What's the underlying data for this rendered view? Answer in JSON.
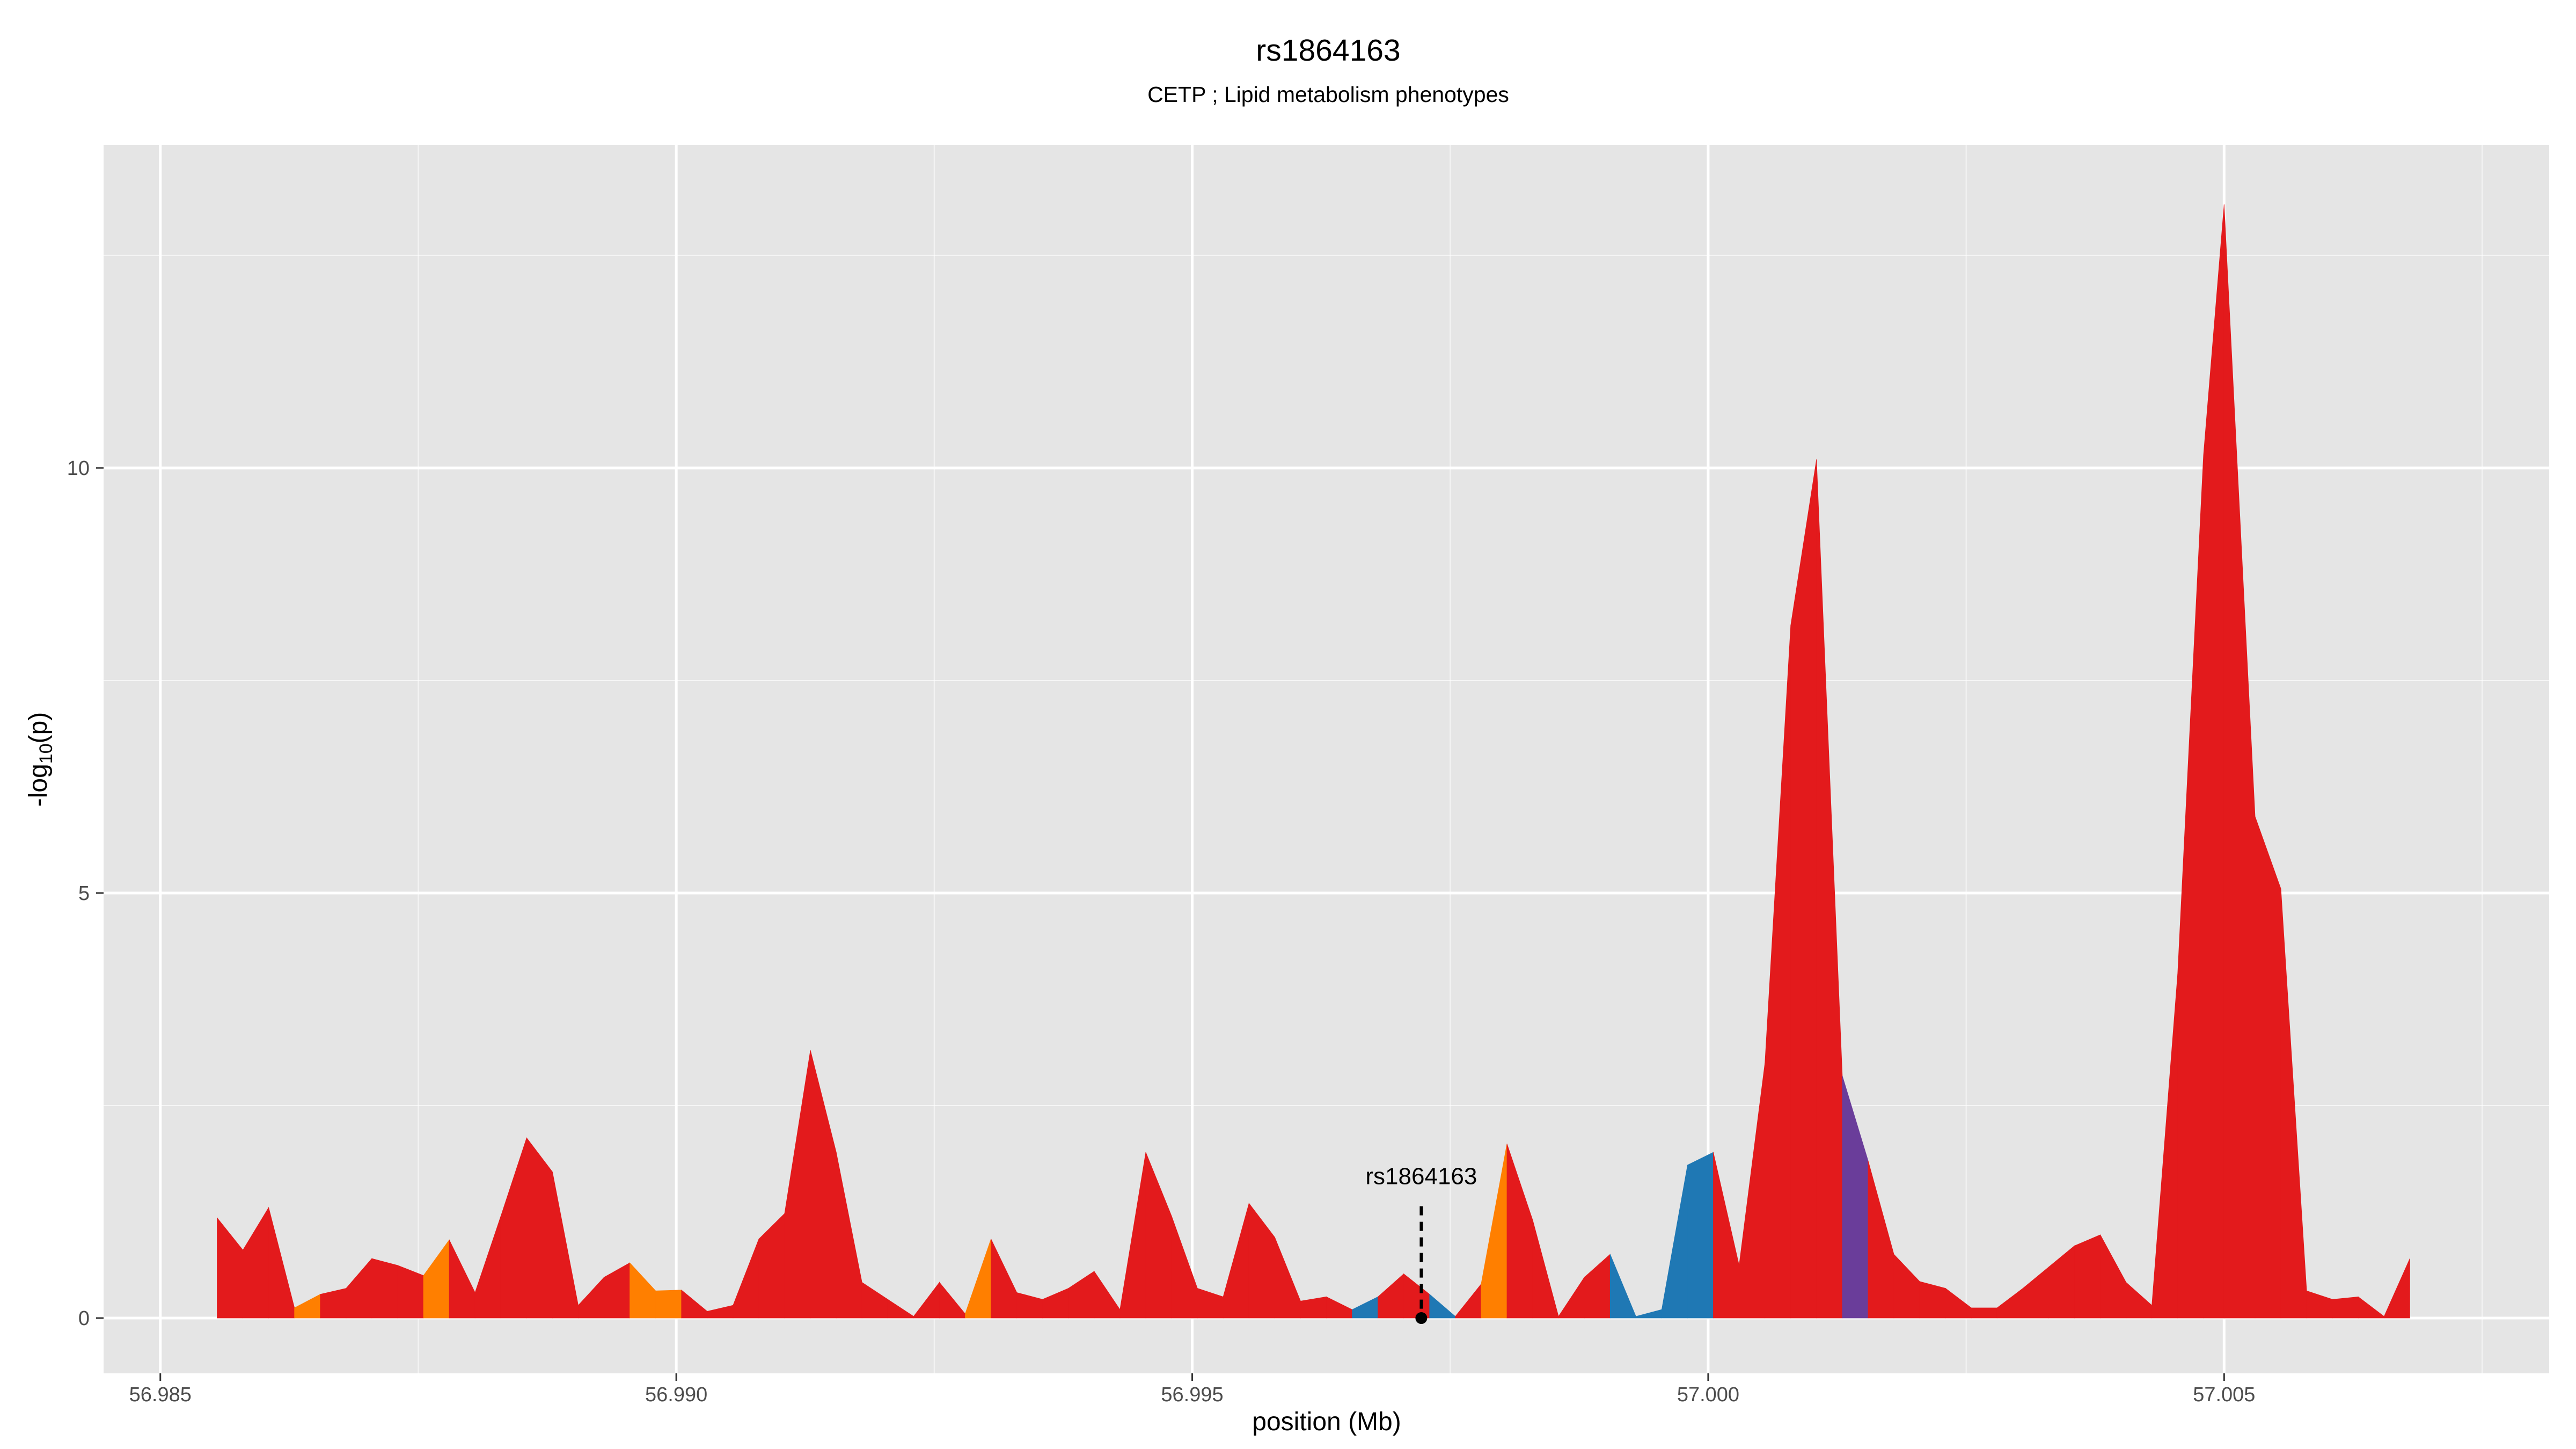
{
  "chart_data": {
    "type": "area",
    "title": "rs1864163",
    "subtitle": "CETP ; Lipid metabolism phenotypes",
    "xlabel": "position (Mb)",
    "ylabel_main": "-log",
    "ylabel_sub": "10",
    "ylabel_suffix": "(p)",
    "xlim": [
      56.98445,
      57.00815
    ],
    "ylim": [
      -0.65,
      13.8
    ],
    "x_ticks": [
      56.985,
      56.99,
      56.995,
      57.0,
      57.005
    ],
    "x_tick_labels": [
      "56.985",
      "56.990",
      "56.995",
      "57.000",
      "57.005"
    ],
    "x_minor_ticks": [
      56.9875,
      56.9925,
      56.9975,
      57.0025,
      57.0075
    ],
    "y_ticks": [
      0,
      5,
      10
    ],
    "y_tick_labels": [
      "0",
      "5",
      "10"
    ],
    "y_minor_ticks": [
      2.5,
      7.5,
      12.5
    ],
    "grid": true,
    "colors": {
      "red": "#e31a1c",
      "orange": "#ff7f00",
      "blue": "#1f78b4",
      "purple": "#6a3d9a",
      "panel": "#e5e5e5",
      "grid": "#ffffff"
    },
    "annotation": {
      "label": "rs1864163",
      "x": 56.99722,
      "y_label": 1.6
    },
    "points": [
      [
        56.98555,
        1.18,
        "red"
      ],
      [
        56.9858,
        0.8,
        "red"
      ],
      [
        56.98605,
        1.3,
        "red"
      ],
      [
        56.9863,
        0.12,
        "orange"
      ],
      [
        56.98655,
        0.28,
        "red"
      ],
      [
        56.9868,
        0.35,
        "red"
      ],
      [
        56.98705,
        0.7,
        "red"
      ],
      [
        56.9873,
        0.62,
        "red"
      ],
      [
        56.98755,
        0.5,
        "orange"
      ],
      [
        56.9878,
        0.92,
        "red"
      ],
      [
        56.98805,
        0.3,
        "red"
      ],
      [
        56.9883,
        1.2,
        "red"
      ],
      [
        56.98855,
        2.12,
        "red"
      ],
      [
        56.9888,
        1.72,
        "red"
      ],
      [
        56.98905,
        0.15,
        "red"
      ],
      [
        56.9893,
        0.48,
        "red"
      ],
      [
        56.98955,
        0.65,
        "orange"
      ],
      [
        56.9898,
        0.32,
        "orange"
      ],
      [
        56.99005,
        0.33,
        "red"
      ],
      [
        56.9903,
        0.08,
        "red"
      ],
      [
        56.99055,
        0.15,
        "red"
      ],
      [
        56.9908,
        0.93,
        "red"
      ],
      [
        56.99105,
        1.23,
        "red"
      ],
      [
        56.9913,
        3.15,
        "red"
      ],
      [
        56.99155,
        1.95,
        "red"
      ],
      [
        56.9918,
        0.42,
        "red"
      ],
      [
        56.99205,
        0.22,
        "red"
      ],
      [
        56.9923,
        0.02,
        "red"
      ],
      [
        56.99255,
        0.42,
        "red"
      ],
      [
        56.9928,
        0.05,
        "orange"
      ],
      [
        56.99305,
        0.93,
        "red"
      ],
      [
        56.9933,
        0.3,
        "red"
      ],
      [
        56.99355,
        0.22,
        "red"
      ],
      [
        56.9938,
        0.35,
        "red"
      ],
      [
        56.99405,
        0.55,
        "red"
      ],
      [
        56.9943,
        0.1,
        "red"
      ],
      [
        56.99455,
        1.95,
        "red"
      ],
      [
        56.9948,
        1.2,
        "red"
      ],
      [
        56.99505,
        0.35,
        "red"
      ],
      [
        56.9953,
        0.25,
        "red"
      ],
      [
        56.99555,
        1.35,
        "red"
      ],
      [
        56.9958,
        0.95,
        "red"
      ],
      [
        56.99605,
        0.2,
        "red"
      ],
      [
        56.9963,
        0.25,
        "red"
      ],
      [
        56.99655,
        0.1,
        "blue"
      ],
      [
        56.9968,
        0.25,
        "red"
      ],
      [
        56.99705,
        0.52,
        "red"
      ],
      [
        56.9973,
        0.28,
        "blue"
      ],
      [
        56.99755,
        0.02,
        "red"
      ],
      [
        56.9978,
        0.4,
        "orange"
      ],
      [
        56.99805,
        2.05,
        "red"
      ],
      [
        56.9983,
        1.15,
        "red"
      ],
      [
        56.99855,
        0.02,
        "red"
      ],
      [
        56.9988,
        0.48,
        "red"
      ],
      [
        56.99905,
        0.75,
        "blue"
      ],
      [
        56.9993,
        0.02,
        "blue"
      ],
      [
        56.99955,
        0.1,
        "blue"
      ],
      [
        56.9998,
        1.8,
        "blue"
      ],
      [
        57.00005,
        1.95,
        "red"
      ],
      [
        57.0003,
        0.62,
        "red"
      ],
      [
        57.00055,
        3.0,
        "red"
      ],
      [
        57.0008,
        8.15,
        "red"
      ],
      [
        57.00105,
        10.1,
        "red"
      ],
      [
        57.0013,
        2.85,
        "purple"
      ],
      [
        57.00155,
        1.85,
        "red"
      ],
      [
        57.0018,
        0.75,
        "red"
      ],
      [
        57.00205,
        0.43,
        "red"
      ],
      [
        57.0023,
        0.35,
        "red"
      ],
      [
        57.00255,
        0.12,
        "red"
      ],
      [
        57.0028,
        0.12,
        "red"
      ],
      [
        57.00305,
        0.35,
        "red"
      ],
      [
        57.0033,
        0.6,
        "red"
      ],
      [
        57.00355,
        0.85,
        "red"
      ],
      [
        57.0038,
        0.98,
        "red"
      ],
      [
        57.00405,
        0.42,
        "red"
      ],
      [
        57.0043,
        0.15,
        "red"
      ],
      [
        57.00455,
        4.05,
        "red"
      ],
      [
        57.0048,
        10.15,
        "red"
      ],
      [
        57.005,
        13.1,
        "red"
      ],
      [
        57.0053,
        5.9,
        "red"
      ],
      [
        57.00555,
        5.05,
        "red"
      ],
      [
        57.0058,
        0.32,
        "red"
      ],
      [
        57.00605,
        0.22,
        "red"
      ],
      [
        57.0063,
        0.25,
        "red"
      ],
      [
        57.00655,
        0.02,
        "red"
      ],
      [
        57.0068,
        0.7,
        "red"
      ]
    ]
  }
}
